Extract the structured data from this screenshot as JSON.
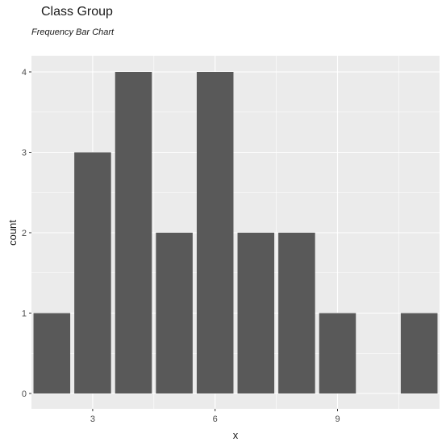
{
  "chart_data": {
    "type": "bar",
    "title": "Class Group",
    "subtitle": "Frequency Bar Chart",
    "xlabel": "x",
    "ylabel": "count",
    "x": [
      2,
      3,
      4,
      5,
      6,
      7,
      8,
      9,
      11
    ],
    "values": [
      1,
      3,
      4,
      2,
      4,
      2,
      2,
      1,
      1
    ],
    "xlim": [
      1.5,
      11.5
    ],
    "ylim": [
      0,
      4
    ],
    "x_ticks": [
      3,
      6,
      9
    ],
    "y_ticks": [
      0,
      1,
      2,
      3,
      4
    ],
    "bar_color": "#595959",
    "panel_color": "#EBEBEB",
    "grid": true,
    "legend": "none"
  }
}
